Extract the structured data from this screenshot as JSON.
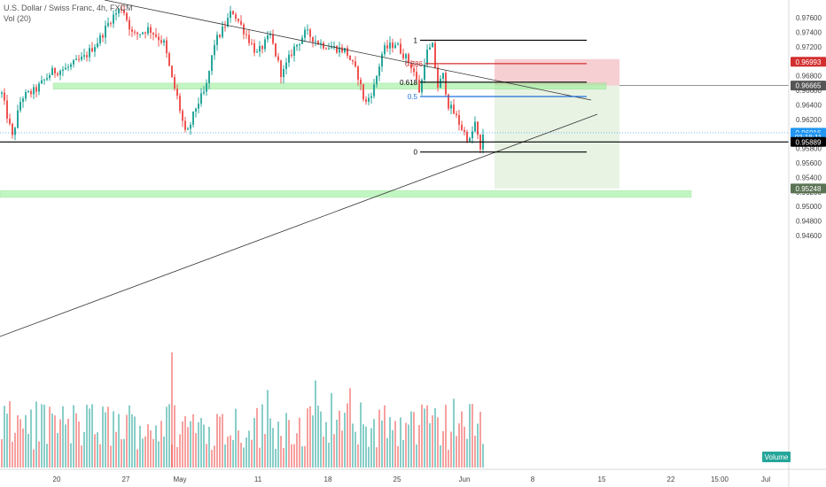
{
  "legend": {
    "title": "U.S. Dollar / Swiss Franc, 4h, FXCM",
    "indicator": "Vol (20)"
  },
  "chart_data": {
    "type": "candlestick",
    "price_axis": {
      "labels": [
        "0.97600",
        "0.97400",
        "0.97200",
        "0.96800",
        "0.96600",
        "0.96400",
        "0.96200",
        "0.95800",
        "0.95600",
        "0.95400",
        "0.95200",
        "0.95000",
        "0.94800",
        "0.94600"
      ],
      "ylim": [
        0.9452,
        0.9774
      ]
    },
    "time_axis": {
      "labels": [
        "20",
        "27",
        "May",
        "11",
        "18",
        "25",
        "Jun",
        "8",
        "15",
        "22",
        "15:00",
        "Jul"
      ]
    },
    "price_tags": [
      {
        "text": "0.96993",
        "value": 0.96993,
        "color": "#d32f2f",
        "text_color": "#ffffff"
      },
      {
        "text": "0.96665",
        "value": 0.96665,
        "color": "#555555",
        "text_color": "#ffffff"
      },
      {
        "text": "0.96016",
        "value": 0.96016,
        "color": "#2196f3",
        "text_color": "#ffffff"
      },
      {
        "text": "03:18:11",
        "value": 0.95952,
        "color": "#2196f3",
        "text_color": "#ffffff"
      },
      {
        "text": "0.95889",
        "value": 0.95889,
        "color": "#000000",
        "text_color": "#ffffff"
      },
      {
        "text": "0.95248",
        "value": 0.95248,
        "color": "#5b7355",
        "text_color": "#ffffff"
      }
    ],
    "fib_levels": [
      {
        "label": "1",
        "value": 0.9729
      },
      {
        "label": "0.786",
        "value": 0.96967
      },
      {
        "label": "0.618",
        "value": 0.96712
      },
      {
        "label": "0.5",
        "value": 0.96515
      },
      {
        "label": "0",
        "value": 0.9575
      }
    ],
    "horizontal_line": 0.95889,
    "last_price": 0.96016,
    "volume_label": "Volume",
    "colors": {
      "up": "#26a69a",
      "down": "#ef5350",
      "zone": "#90ee90",
      "stop": "#f4c7cb",
      "target": "#e5f2e1"
    }
  }
}
